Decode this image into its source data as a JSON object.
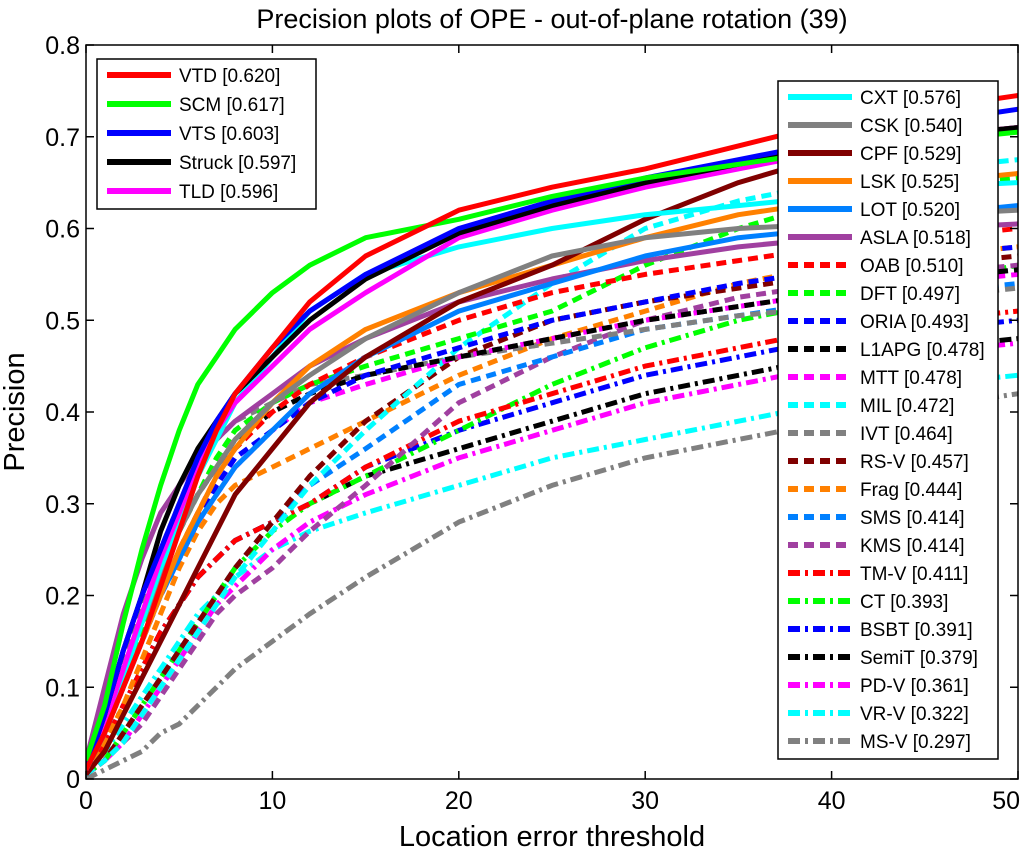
{
  "chart_data": {
    "type": "line",
    "title": "Precision plots of OPE - out-of-plane rotation (39)",
    "xlabel": "Location error threshold",
    "ylabel": "Precision",
    "xlim": [
      0,
      50
    ],
    "ylim": [
      0,
      0.8
    ],
    "xticks": [
      "0",
      "10",
      "20",
      "30",
      "40",
      "50"
    ],
    "yticks": [
      "0",
      "0.1",
      "0.2",
      "0.3",
      "0.4",
      "0.5",
      "0.6",
      "0.7",
      "0.8"
    ],
    "grid": false,
    "legend_placement": [
      "top-left",
      "top-right"
    ],
    "x": [
      0,
      1,
      2,
      3,
      4,
      5,
      6,
      7,
      8,
      10,
      12,
      15,
      20,
      25,
      30,
      35,
      40,
      45,
      50
    ],
    "series": [
      {
        "name": "VTD [0.620]",
        "color": "#ff0000",
        "style": "solid",
        "legend": 1,
        "values": [
          0.01,
          0.05,
          0.1,
          0.15,
          0.21,
          0.27,
          0.33,
          0.38,
          0.42,
          0.47,
          0.52,
          0.57,
          0.62,
          0.645,
          0.665,
          0.69,
          0.715,
          0.73,
          0.745
        ]
      },
      {
        "name": "SCM [0.617]",
        "color": "#00ff00",
        "style": "solid",
        "legend": 1,
        "values": [
          0.02,
          0.08,
          0.17,
          0.25,
          0.32,
          0.38,
          0.43,
          0.46,
          0.49,
          0.53,
          0.56,
          0.59,
          0.61,
          0.635,
          0.655,
          0.67,
          0.685,
          0.695,
          0.705
        ]
      },
      {
        "name": "VTS [0.603]",
        "color": "#0000ff",
        "style": "solid",
        "legend": 1,
        "values": [
          0.01,
          0.07,
          0.14,
          0.2,
          0.25,
          0.3,
          0.35,
          0.39,
          0.42,
          0.47,
          0.51,
          0.55,
          0.6,
          0.63,
          0.655,
          0.675,
          0.695,
          0.715,
          0.73
        ]
      },
      {
        "name": "Struck [0.597]",
        "color": "#000000",
        "style": "solid",
        "legend": 1,
        "values": [
          0.01,
          0.07,
          0.14,
          0.2,
          0.27,
          0.32,
          0.36,
          0.39,
          0.42,
          0.46,
          0.5,
          0.545,
          0.595,
          0.625,
          0.65,
          0.67,
          0.69,
          0.7,
          0.71
        ]
      },
      {
        "name": "TLD [0.596]",
        "color": "#ff00ff",
        "style": "solid",
        "legend": 1,
        "values": [
          0.01,
          0.06,
          0.12,
          0.18,
          0.24,
          0.29,
          0.34,
          0.38,
          0.41,
          0.45,
          0.49,
          0.53,
          0.59,
          0.62,
          0.645,
          0.665,
          0.685,
          0.7,
          0.71
        ]
      },
      {
        "name": "CXT [0.576]",
        "color": "#00ffff",
        "style": "solid",
        "legend": 2,
        "values": [
          0.01,
          0.05,
          0.11,
          0.17,
          0.23,
          0.28,
          0.33,
          0.37,
          0.41,
          0.46,
          0.51,
          0.55,
          0.58,
          0.6,
          0.615,
          0.625,
          0.635,
          0.645,
          0.65
        ]
      },
      {
        "name": "CSK [0.540]",
        "color": "#808080",
        "style": "solid",
        "legend": 2,
        "values": [
          0.01,
          0.06,
          0.12,
          0.17,
          0.22,
          0.27,
          0.31,
          0.34,
          0.37,
          0.41,
          0.44,
          0.48,
          0.53,
          0.57,
          0.59,
          0.6,
          0.605,
          0.615,
          0.62
        ]
      },
      {
        "name": "CPF [0.529]",
        "color": "#800000",
        "style": "solid",
        "legend": 2,
        "values": [
          0.005,
          0.03,
          0.07,
          0.11,
          0.15,
          0.19,
          0.23,
          0.27,
          0.31,
          0.36,
          0.41,
          0.46,
          0.52,
          0.56,
          0.61,
          0.65,
          0.68,
          0.7,
          0.71
        ]
      },
      {
        "name": "LSK [0.525]",
        "color": "#ff8000",
        "style": "solid",
        "legend": 2,
        "values": [
          0.01,
          0.05,
          0.1,
          0.15,
          0.2,
          0.25,
          0.29,
          0.33,
          0.36,
          0.41,
          0.45,
          0.49,
          0.53,
          0.56,
          0.59,
          0.615,
          0.63,
          0.65,
          0.66
        ]
      },
      {
        "name": "LOT [0.520]",
        "color": "#0080ff",
        "style": "solid",
        "legend": 2,
        "values": [
          0.01,
          0.05,
          0.1,
          0.15,
          0.2,
          0.24,
          0.28,
          0.31,
          0.34,
          0.38,
          0.42,
          0.46,
          0.51,
          0.54,
          0.57,
          0.59,
          0.6,
          0.615,
          0.625
        ]
      },
      {
        "name": "ASLA [0.518]",
        "color": "#a040a0",
        "style": "solid",
        "legend": 2,
        "values": [
          0.02,
          0.1,
          0.18,
          0.24,
          0.29,
          0.32,
          0.35,
          0.37,
          0.39,
          0.42,
          0.45,
          0.48,
          0.52,
          0.545,
          0.565,
          0.58,
          0.59,
          0.6,
          0.605
        ]
      },
      {
        "name": "OAB [0.510]",
        "color": "#ff0000",
        "style": "dashed",
        "legend": 2,
        "values": [
          0.01,
          0.05,
          0.1,
          0.15,
          0.2,
          0.25,
          0.29,
          0.33,
          0.36,
          0.4,
          0.43,
          0.46,
          0.5,
          0.53,
          0.55,
          0.565,
          0.58,
          0.59,
          0.6
        ]
      },
      {
        "name": "DFT [0.497]",
        "color": "#00ff00",
        "style": "dashed",
        "legend": 2,
        "values": [
          0.01,
          0.05,
          0.11,
          0.16,
          0.22,
          0.27,
          0.31,
          0.35,
          0.38,
          0.41,
          0.43,
          0.45,
          0.48,
          0.51,
          0.56,
          0.6,
          0.63,
          0.645,
          0.655
        ]
      },
      {
        "name": "ORIA [0.493]",
        "color": "#0000ff",
        "style": "dashed",
        "legend": 2,
        "values": [
          0.01,
          0.05,
          0.1,
          0.15,
          0.2,
          0.24,
          0.28,
          0.32,
          0.35,
          0.38,
          0.41,
          0.44,
          0.47,
          0.5,
          0.52,
          0.54,
          0.555,
          0.57,
          0.58
        ]
      },
      {
        "name": "L1APG [0.478]",
        "color": "#000000",
        "style": "dashed",
        "legend": 2,
        "values": [
          0.01,
          0.05,
          0.11,
          0.17,
          0.22,
          0.27,
          0.31,
          0.34,
          0.37,
          0.4,
          0.42,
          0.44,
          0.46,
          0.48,
          0.5,
          0.515,
          0.53,
          0.545,
          0.555
        ]
      },
      {
        "name": "MTT [0.478]",
        "color": "#ff00ff",
        "style": "dashed",
        "legend": 2,
        "values": [
          0.01,
          0.05,
          0.1,
          0.15,
          0.2,
          0.24,
          0.28,
          0.31,
          0.34,
          0.38,
          0.41,
          0.43,
          0.46,
          0.48,
          0.5,
          0.515,
          0.53,
          0.54,
          0.55
        ]
      },
      {
        "name": "MIL [0.472]",
        "color": "#00ffff",
        "style": "dashed",
        "legend": 2,
        "values": [
          0.005,
          0.02,
          0.04,
          0.07,
          0.1,
          0.13,
          0.16,
          0.19,
          0.22,
          0.27,
          0.32,
          0.38,
          0.47,
          0.54,
          0.6,
          0.63,
          0.65,
          0.665,
          0.675
        ]
      },
      {
        "name": "IVT [0.464]",
        "color": "#808080",
        "style": "dashed",
        "legend": 2,
        "values": [
          0.01,
          0.06,
          0.13,
          0.19,
          0.25,
          0.3,
          0.34,
          0.37,
          0.39,
          0.41,
          0.43,
          0.44,
          0.46,
          0.475,
          0.49,
          0.505,
          0.515,
          0.525,
          0.535
        ]
      },
      {
        "name": "RS-V [0.457]",
        "color": "#800000",
        "style": "dashed",
        "legend": 2,
        "values": [
          0.005,
          0.02,
          0.05,
          0.08,
          0.11,
          0.14,
          0.17,
          0.2,
          0.23,
          0.28,
          0.33,
          0.39,
          0.46,
          0.5,
          0.52,
          0.535,
          0.55,
          0.56,
          0.57
        ]
      },
      {
        "name": "Frag [0.444]",
        "color": "#ff8000",
        "style": "dashed",
        "legend": 2,
        "values": [
          0.005,
          0.04,
          0.08,
          0.13,
          0.18,
          0.23,
          0.27,
          0.3,
          0.32,
          0.34,
          0.36,
          0.39,
          0.44,
          0.48,
          0.51,
          0.54,
          0.56,
          0.57,
          0.58
        ]
      },
      {
        "name": "SMS [0.414]",
        "color": "#0080ff",
        "style": "dashed",
        "legend": 2,
        "values": [
          0.005,
          0.02,
          0.05,
          0.08,
          0.11,
          0.14,
          0.17,
          0.2,
          0.23,
          0.28,
          0.32,
          0.36,
          0.43,
          0.46,
          0.49,
          0.505,
          0.52,
          0.53,
          0.54
        ]
      },
      {
        "name": "KMS [0.414]",
        "color": "#a040a0",
        "style": "dashed",
        "legend": 2,
        "values": [
          0.005,
          0.02,
          0.04,
          0.06,
          0.09,
          0.12,
          0.15,
          0.18,
          0.2,
          0.23,
          0.27,
          0.32,
          0.41,
          0.46,
          0.5,
          0.525,
          0.54,
          0.55,
          0.56
        ]
      },
      {
        "name": "TM-V [0.411]",
        "color": "#ff0000",
        "style": "dashdot",
        "legend": 2,
        "values": [
          0.005,
          0.04,
          0.08,
          0.12,
          0.16,
          0.19,
          0.22,
          0.24,
          0.26,
          0.28,
          0.3,
          0.34,
          0.39,
          0.42,
          0.45,
          0.47,
          0.49,
          0.5,
          0.51
        ]
      },
      {
        "name": "CT [0.393]",
        "color": "#00ff00",
        "style": "dashdot",
        "legend": 2,
        "values": [
          0.005,
          0.02,
          0.05,
          0.08,
          0.11,
          0.14,
          0.17,
          0.2,
          0.23,
          0.27,
          0.3,
          0.33,
          0.38,
          0.43,
          0.47,
          0.5,
          0.52,
          0.54,
          0.56
        ]
      },
      {
        "name": "BSBT [0.391]",
        "color": "#0000ff",
        "style": "dashdot",
        "legend": 2,
        "values": [
          0.005,
          0.04,
          0.08,
          0.12,
          0.16,
          0.19,
          0.22,
          0.24,
          0.26,
          0.28,
          0.3,
          0.34,
          0.38,
          0.41,
          0.44,
          0.46,
          0.48,
          0.49,
          0.5
        ]
      },
      {
        "name": "SemiT [0.379]",
        "color": "#000000",
        "style": "dashdot",
        "legend": 2,
        "values": [
          0.005,
          0.04,
          0.08,
          0.12,
          0.16,
          0.19,
          0.22,
          0.24,
          0.26,
          0.28,
          0.3,
          0.33,
          0.36,
          0.39,
          0.42,
          0.44,
          0.46,
          0.47,
          0.48
        ]
      },
      {
        "name": "PD-V [0.361]",
        "color": "#ff00ff",
        "style": "dashdot",
        "legend": 2,
        "values": [
          0.005,
          0.02,
          0.04,
          0.07,
          0.1,
          0.13,
          0.16,
          0.19,
          0.21,
          0.25,
          0.28,
          0.31,
          0.35,
          0.38,
          0.41,
          0.43,
          0.45,
          0.465,
          0.475
        ]
      },
      {
        "name": "VR-V [0.322]",
        "color": "#00ffff",
        "style": "dashdot",
        "legend": 2,
        "values": [
          0.005,
          0.03,
          0.06,
          0.09,
          0.12,
          0.15,
          0.18,
          0.2,
          0.22,
          0.25,
          0.27,
          0.29,
          0.32,
          0.35,
          0.37,
          0.39,
          0.41,
          0.43,
          0.44
        ]
      },
      {
        "name": "MS-V [0.297]",
        "color": "#808080",
        "style": "dashdot",
        "legend": 2,
        "values": [
          0.0,
          0.01,
          0.02,
          0.03,
          0.05,
          0.06,
          0.08,
          0.1,
          0.12,
          0.15,
          0.18,
          0.22,
          0.28,
          0.32,
          0.35,
          0.37,
          0.39,
          0.405,
          0.42
        ]
      }
    ]
  }
}
